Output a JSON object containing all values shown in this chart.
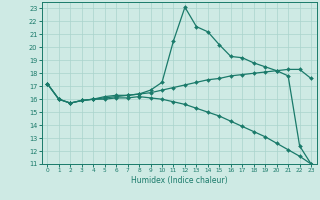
{
  "bg_color": "#ceeae4",
  "grid_color": "#aad4cc",
  "line_color": "#1a7a6a",
  "xlabel": "Humidex (Indice chaleur)",
  "ylim": [
    11,
    23.5
  ],
  "xlim": [
    -0.5,
    23.5
  ],
  "yticks": [
    11,
    12,
    13,
    14,
    15,
    16,
    17,
    18,
    19,
    20,
    21,
    22,
    23
  ],
  "xticks": [
    0,
    1,
    2,
    3,
    4,
    5,
    6,
    7,
    8,
    9,
    10,
    11,
    12,
    13,
    14,
    15,
    16,
    17,
    18,
    19,
    20,
    21,
    22,
    23
  ],
  "line1_x": [
    0,
    1,
    2,
    3,
    4,
    5,
    6,
    7,
    8,
    9,
    10,
    11,
    12,
    13,
    14,
    15,
    16,
    17,
    18,
    19,
    20,
    21,
    22,
    23
  ],
  "line1_y": [
    17.2,
    16.0,
    15.7,
    15.9,
    16.0,
    16.2,
    16.3,
    16.3,
    16.4,
    16.7,
    17.3,
    20.5,
    23.1,
    21.6,
    21.2,
    20.2,
    19.3,
    19.2,
    18.8,
    18.5,
    18.2,
    17.8,
    12.4,
    11.0
  ],
  "line2_x": [
    0,
    1,
    2,
    3,
    4,
    5,
    6,
    7,
    8,
    9,
    10,
    11,
    12,
    13,
    14,
    15,
    16,
    17,
    18,
    19,
    20,
    21,
    22,
    23
  ],
  "line2_y": [
    17.2,
    16.0,
    15.7,
    15.9,
    16.0,
    16.1,
    16.2,
    16.3,
    16.4,
    16.5,
    16.7,
    16.9,
    17.1,
    17.3,
    17.5,
    17.6,
    17.8,
    17.9,
    18.0,
    18.1,
    18.2,
    18.3,
    18.3,
    17.6
  ],
  "line3_x": [
    0,
    1,
    2,
    3,
    4,
    5,
    6,
    7,
    8,
    9,
    10,
    11,
    12,
    13,
    14,
    15,
    16,
    17,
    18,
    19,
    20,
    21,
    22,
    23
  ],
  "line3_y": [
    17.2,
    16.0,
    15.7,
    15.9,
    16.0,
    16.0,
    16.1,
    16.1,
    16.2,
    16.1,
    16.0,
    15.8,
    15.6,
    15.3,
    15.0,
    14.7,
    14.3,
    13.9,
    13.5,
    13.1,
    12.6,
    12.1,
    11.6,
    11.0
  ],
  "markersize": 2.0,
  "linewidth": 0.9
}
